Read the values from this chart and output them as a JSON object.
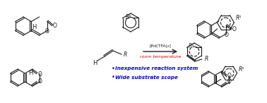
{
  "catalyst_text": "[Pd(TFA)₂]",
  "condition_text": "room temperature",
  "bullet1": "Inexpensive reaction system",
  "bullet2": "Wide substrate scope",
  "text_color_black": "#1a1a1a",
  "text_color_blue": "#0000cc",
  "text_color_red": "#cc0000",
  "line_color": "#1a1a1a",
  "fig_width": 3.78,
  "fig_height": 1.46
}
